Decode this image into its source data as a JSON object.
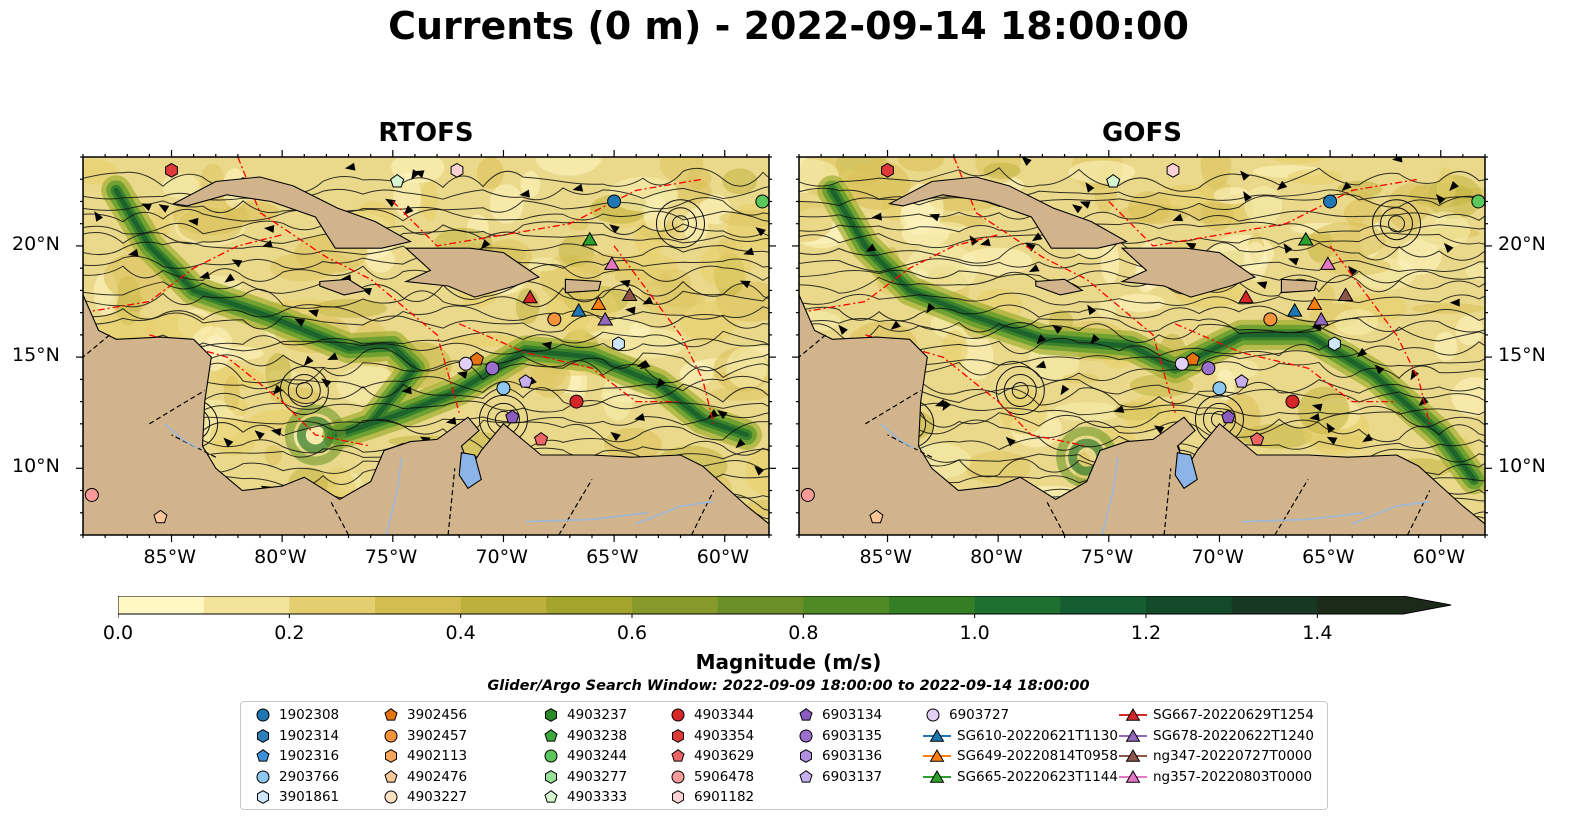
{
  "title": "Currents (0 m) - 2022-09-14 18:00:00",
  "panels": [
    {
      "title": "RTOFS"
    },
    {
      "title": "GOFS"
    }
  ],
  "lon_ticks": [
    "85°W",
    "80°W",
    "75°W",
    "70°W",
    "65°W",
    "60°W"
  ],
  "lat_ticks": [
    "20°N",
    "15°N",
    "10°N"
  ],
  "map_extent": {
    "lon": [
      -89,
      -58
    ],
    "lat": [
      7,
      24
    ]
  },
  "colorbar": {
    "label": "Magnitude (m/s)",
    "ticks": [
      "0.0",
      "0.2",
      "0.4",
      "0.6",
      "0.8",
      "1.0",
      "1.2",
      "1.4"
    ],
    "range": [
      0,
      1.5
    ],
    "extend": "max",
    "colors": [
      "#fff8c4",
      "#f2e49a",
      "#e3cf70",
      "#d2bd50",
      "#beb03c",
      "#a3a42c",
      "#87992a",
      "#6b8f27",
      "#4f8a24",
      "#347f25",
      "#1f7030",
      "#145d30",
      "#124a2a",
      "#193823",
      "#1c2a1a"
    ]
  },
  "search_window": "Glider/Argo Search Window: 2022-09-09 18:00:00 to 2022-09-14 18:00:00",
  "colors": {
    "land": "#d2b48c",
    "lake": "#8cb4e6",
    "rivers": "#9ab8d8",
    "eez": "#ff0000",
    "ocean_low": "#fff8c4"
  },
  "legend": [
    {
      "label": "1902308",
      "marker": "circle",
      "color": "#1f77b4"
    },
    {
      "label": "1902314",
      "marker": "hexagon",
      "color": "#2c7fb8"
    },
    {
      "label": "1902316",
      "marker": "pentagon",
      "color": "#3b8fd9"
    },
    {
      "label": "2903766",
      "marker": "circle",
      "color": "#8ec8f0"
    },
    {
      "label": "3901861",
      "marker": "hexagon",
      "color": "#cde6fa"
    },
    {
      "label": "3902456",
      "marker": "pentagon",
      "color": "#e6730e"
    },
    {
      "label": "3902457",
      "marker": "circle",
      "color": "#f5933a"
    },
    {
      "label": "4902113",
      "marker": "hexagon",
      "color": "#f7a55a"
    },
    {
      "label": "4902476",
      "marker": "pentagon",
      "color": "#f9c79a"
    },
    {
      "label": "4903227",
      "marker": "circle",
      "color": "#fde0c0"
    },
    {
      "label": "4903237",
      "marker": "hexagon",
      "color": "#2a8a2a"
    },
    {
      "label": "4903238",
      "marker": "pentagon",
      "color": "#3aa83a"
    },
    {
      "label": "4903244",
      "marker": "circle",
      "color": "#5cc85c"
    },
    {
      "label": "4903277",
      "marker": "hexagon",
      "color": "#98e098"
    },
    {
      "label": "4903333",
      "marker": "pentagon",
      "color": "#d4f5d0"
    },
    {
      "label": "4903344",
      "marker": "circle",
      "color": "#d62728"
    },
    {
      "label": "4903354",
      "marker": "hexagon",
      "color": "#e0393a"
    },
    {
      "label": "4903629",
      "marker": "pentagon",
      "color": "#ec6464"
    },
    {
      "label": "5906478",
      "marker": "circle",
      "color": "#f79a9a"
    },
    {
      "label": "6901182",
      "marker": "hexagon",
      "color": "#fcd2d2"
    },
    {
      "label": "6903134",
      "marker": "pentagon",
      "color": "#8a5cc0"
    },
    {
      "label": "6903135",
      "marker": "circle",
      "color": "#9a70cc"
    },
    {
      "label": "6903136",
      "marker": "hexagon",
      "color": "#b08ee0"
    },
    {
      "label": "6903137",
      "marker": "pentagon",
      "color": "#c8b0f0"
    },
    {
      "label": "6903727",
      "marker": "circle",
      "color": "#e2d0f7"
    },
    {
      "label": "SG610-20220621T1130",
      "marker": "triangle",
      "color": "#1f77b4"
    },
    {
      "label": "SG649-20220814T0958",
      "marker": "triangle",
      "color": "#ff7f0e"
    },
    {
      "label": "SG665-20220623T1144",
      "marker": "triangle",
      "color": "#2ca02c"
    },
    {
      "label": "SG667-20220629T1254",
      "marker": "triangle",
      "color": "#d62728"
    },
    {
      "label": "SG678-20220622T1240",
      "marker": "triangle",
      "color": "#9467bd"
    },
    {
      "label": "ng347-20220727T0000",
      "marker": "triangle",
      "color": "#8c564b"
    },
    {
      "label": "ng357-20220803T0000",
      "marker": "triangle",
      "color": "#e377c2"
    }
  ],
  "observations": [
    {
      "id": "1902308",
      "lon": -65.0,
      "lat": 22.0
    },
    {
      "id": "2903766",
      "lon": -70.0,
      "lat": 13.6
    },
    {
      "id": "3901861",
      "lon": -64.8,
      "lat": 15.6
    },
    {
      "id": "3902456",
      "lon": -71.2,
      "lat": 14.9
    },
    {
      "id": "3902457",
      "lon": -67.7,
      "lat": 16.7
    },
    {
      "id": "4903244",
      "lon": -58.3,
      "lat": 22.0
    },
    {
      "id": "4903333",
      "lon": -74.8,
      "lat": 22.9
    },
    {
      "id": "4903344",
      "lon": -66.7,
      "lat": 13.0
    },
    {
      "id": "5906478",
      "lon": -88.6,
      "lat": 8.8
    },
    {
      "id": "6901182",
      "lon": -72.1,
      "lat": 23.4
    },
    {
      "id": "6903134",
      "lon": -69.6,
      "lat": 12.3
    },
    {
      "id": "6903135",
      "lon": -70.5,
      "lat": 14.5
    },
    {
      "id": "6903137",
      "lon": -69.0,
      "lat": 13.9
    },
    {
      "id": "6903727",
      "lon": -71.7,
      "lat": 14.7
    },
    {
      "id": "4903629",
      "lon": -68.3,
      "lat": 11.3
    },
    {
      "id": "4903354",
      "lon": -85.0,
      "lat": 23.4
    },
    {
      "id": "4902476",
      "lon": -85.5,
      "lat": 7.8
    },
    {
      "id": "SG610-20220621T1130",
      "lon": -66.6,
      "lat": 17.1
    },
    {
      "id": "SG649-20220814T0958",
      "lon": -65.7,
      "lat": 17.4
    },
    {
      "id": "SG665-20220623T1144",
      "lon": -66.1,
      "lat": 20.3
    },
    {
      "id": "SG667-20220629T1254",
      "lon": -68.8,
      "lat": 17.7
    },
    {
      "id": "SG678-20220622T1240",
      "lon": -65.4,
      "lat": 16.7
    },
    {
      "id": "ng347-20220727T0000",
      "lon": -64.3,
      "lat": 17.8
    },
    {
      "id": "ng357-20220803T0000",
      "lon": -65.1,
      "lat": 19.2
    }
  ]
}
